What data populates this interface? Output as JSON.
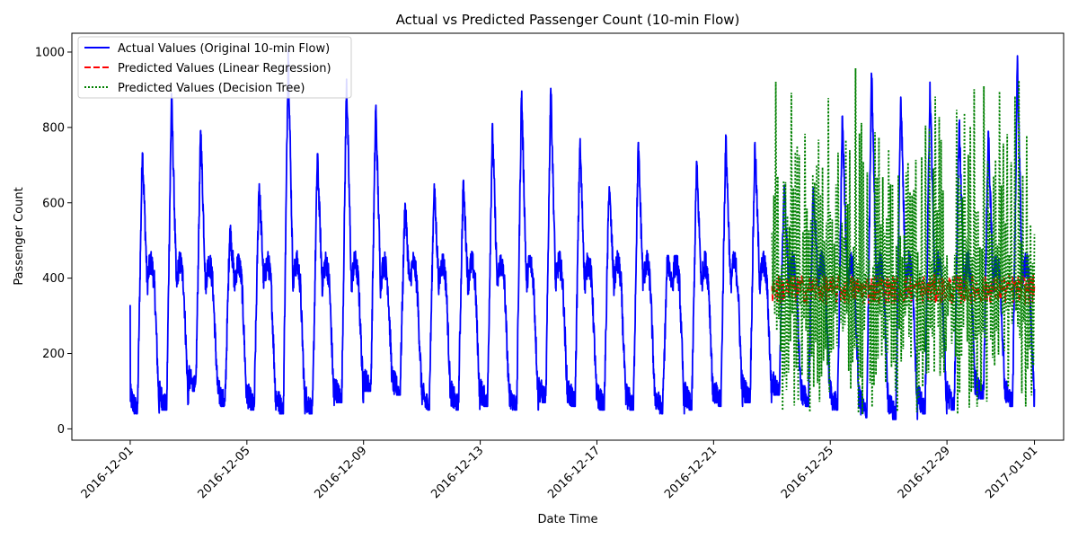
{
  "chart_data": {
    "type": "line",
    "title": "Actual vs Predicted Passenger Count (10-min Flow)",
    "xlabel": "Date Time",
    "ylabel": "Passenger Count",
    "xlim": [
      "2016-11-29",
      "2017-01-02"
    ],
    "ylim": [
      -30,
      1050
    ],
    "x_ticks": [
      "2016-12-01",
      "2016-12-05",
      "2016-12-09",
      "2016-12-13",
      "2016-12-17",
      "2016-12-21",
      "2016-12-25",
      "2016-12-29",
      "2017-01-01"
    ],
    "y_ticks": [
      0,
      200,
      400,
      600,
      800,
      1000
    ],
    "grid": false,
    "legend_position": "top-left",
    "series": [
      {
        "name": "Actual Values (Original 10-min Flow)",
        "color": "#0000ff",
        "style": "solid",
        "x_start": "2016-12-01",
        "x_end": "2017-01-01",
        "daily_peaks": [
          750,
          890,
          800,
          540,
          660,
          1010,
          730,
          930,
          860,
          600,
          650,
          660,
          810,
          900,
          920,
          770,
          650,
          760,
          460,
          710,
          780,
          760,
          650,
          640,
          830,
          950,
          900,
          920,
          830,
          790,
          990
        ],
        "daily_lows": [
          40,
          50,
          100,
          60,
          50,
          40,
          40,
          70,
          100,
          90,
          50,
          50,
          60,
          50,
          70,
          60,
          50,
          50,
          40,
          50,
          60,
          70,
          90,
          60,
          50,
          30,
          25,
          40,
          50,
          80,
          60
        ]
      },
      {
        "name": "Predicted Values (Linear Regression)",
        "color": "#ff0000",
        "style": "dashed",
        "x_start": "2016-12-23",
        "x_end": "2017-01-01",
        "level": 370,
        "range": [
          330,
          410
        ]
      },
      {
        "name": "Predicted Values (Decision Tree)",
        "color": "#008000",
        "style": "dotted",
        "x_start": "2016-12-23",
        "x_end": "2017-01-01",
        "range": [
          30,
          995
        ]
      }
    ]
  }
}
